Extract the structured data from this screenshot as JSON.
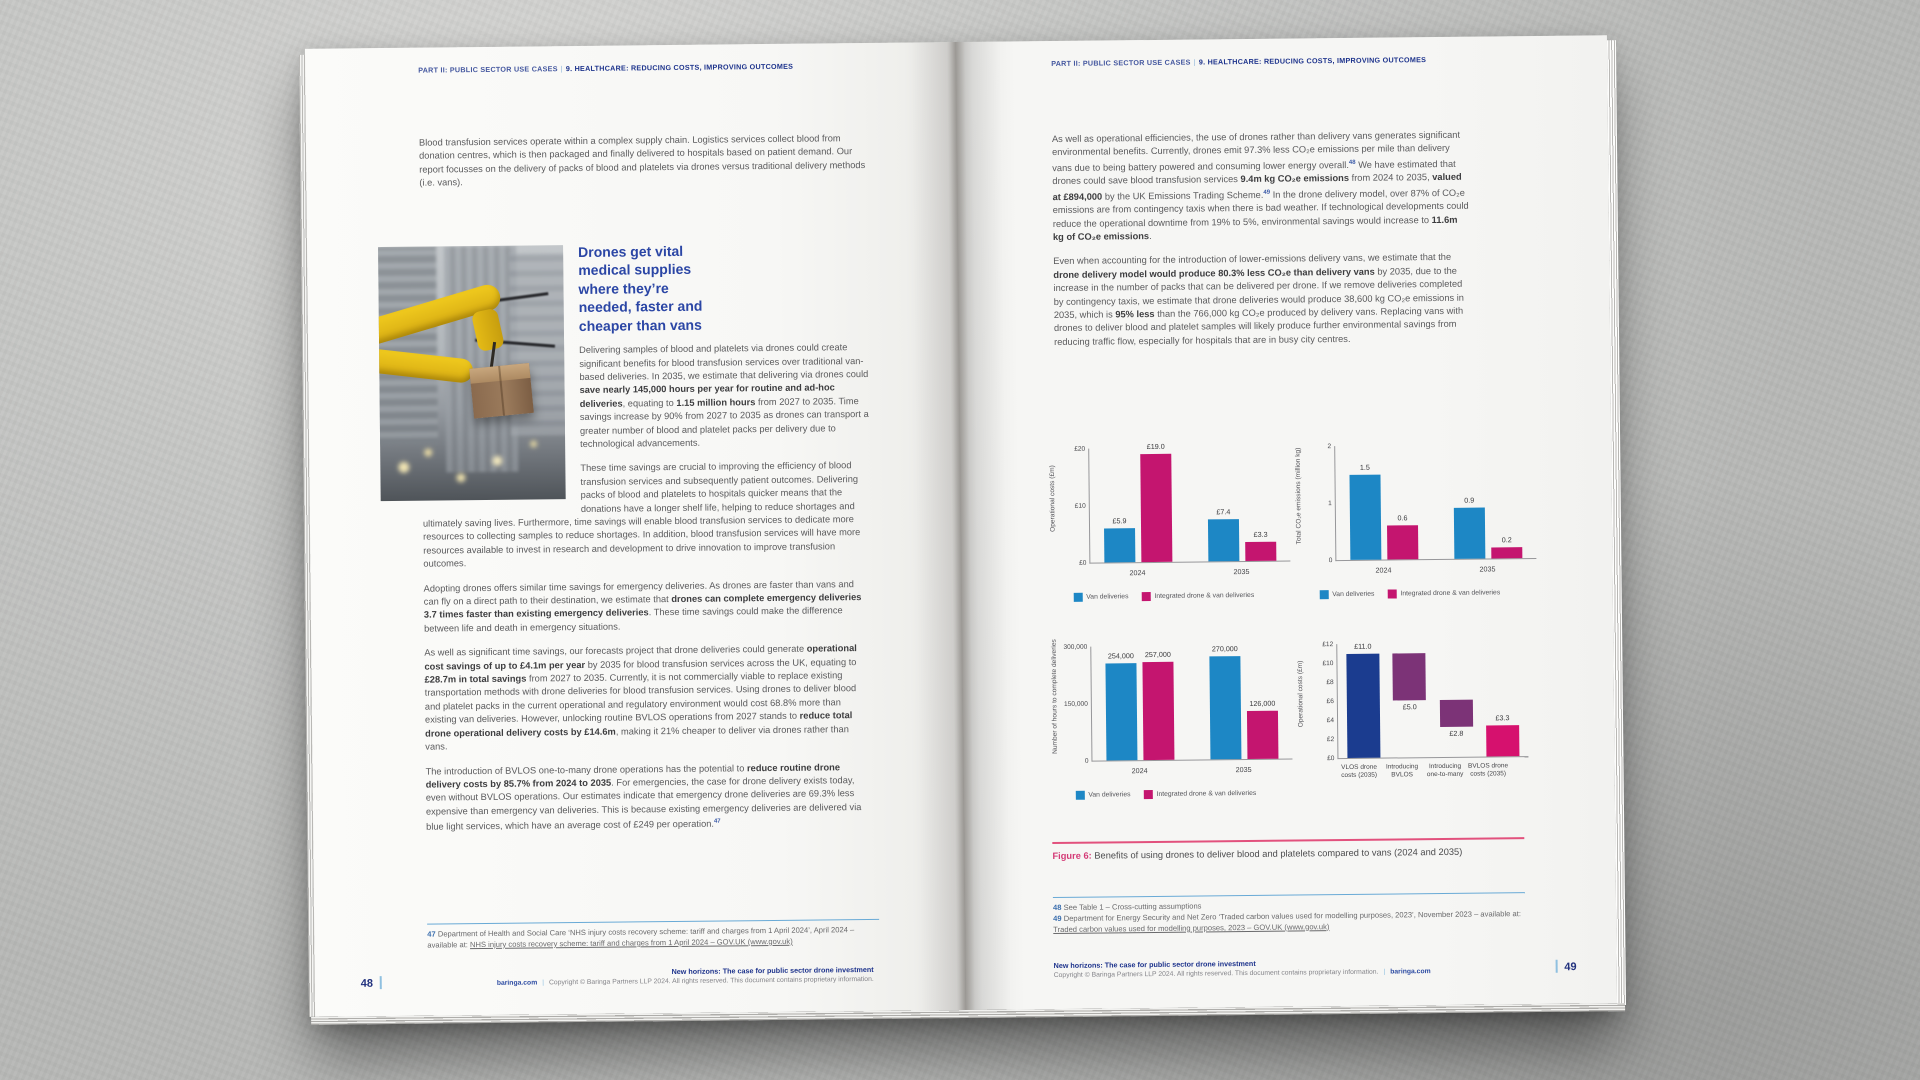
{
  "header": {
    "part": "PART II: PUBLIC SECTOR USE CASES",
    "sep": "|",
    "section": "9. HEALTHCARE: REDUCING COSTS, IMPROVING OUTCOMES"
  },
  "left_page": {
    "intro": "Blood transfusion services operate within a complex supply chain. Logistics services collect blood from donation centres, which is then packaged and finally delivered to hospitals based on patient demand. Our report focusses on the delivery of packs of blood and platelets via drones versus traditional delivery methods (i.e. vans).",
    "heading": "Drones get vital medical supplies where they’re needed, faster and cheaper than vans",
    "para_beside_photo": [
      {
        "t": "Delivering samples of blood and platelets via drones could create significant benefits for blood transfusion services over traditional van-based deliveries. In 2035, we estimate that delivering via drones could "
      },
      {
        "t": "save nearly 145,000 hours per year for routine and ad-hoc deliveries",
        "b": true
      },
      {
        "t": ", equating to "
      },
      {
        "t": "1.15 million hours",
        "b": true
      },
      {
        "t": " from 2027 to 2035. Time savings increase by 90% from 2027 to 2035 as drones can transport a greater number of blood and platelet packs per delivery due to technological advancements."
      }
    ],
    "para_wrap": [
      {
        "t": "These time savings are crucial to improving the efficiency of blood transfusion services and subsequently patient outcomes. Delivering packs of blood and platelets to hospitals quicker means that the donations have a longer shelf life, helping to reduce shortages and ultimately saving lives. Furthermore, time savings will enable blood transfusion services to dedicate more resources to collecting samples to reduce shortages. In addition, blood transfusion services will have more resources available to invest in research and development to drive innovation to improve transfusion outcomes."
      }
    ],
    "para4": [
      {
        "t": "Adopting drones offers similar time savings for emergency deliveries. As drones are faster than vans and can fly on a direct path to their destination, we estimate that "
      },
      {
        "t": "drones can complete emergency deliveries 3.7 times faster than existing emergency deliveries",
        "b": true
      },
      {
        "t": ". These time savings could make the difference between life and death in emergency situations."
      }
    ],
    "para5": [
      {
        "t": "As well as significant time savings, our forecasts project that drone deliveries could generate "
      },
      {
        "t": "operational cost savings of up to £4.1m per year",
        "b": true
      },
      {
        "t": " by 2035 for blood transfusion services across the UK, equating to "
      },
      {
        "t": "£28.7m in total savings",
        "b": true
      },
      {
        "t": " from 2027 to 2035. Currently, it is not commercially viable to replace existing transportation methods with drone deliveries for blood transfusion services. Using drones to deliver blood and platelet packs in the current operational and regulatory environment would cost 68.8% more than existing van deliveries. However, unlocking routine BVLOS operations from 2027 stands to "
      },
      {
        "t": "reduce total drone operational delivery costs by £14.6m",
        "b": true
      },
      {
        "t": ", making it 21% cheaper to deliver via drones rather than vans."
      }
    ],
    "para6": [
      {
        "t": "The introduction of BVLOS one-to-many drone operations has the potential to "
      },
      {
        "t": "reduce routine drone delivery costs by 85.7% from 2024 to 2035",
        "b": true
      },
      {
        "t": ". For emergencies, the case for drone delivery exists today, even without BVLOS operations. Our estimates indicate that emergency drone deliveries are 69.3% less expensive than emergency van deliveries. This is because existing emergency deliveries are delivered via blue light services, which have an average cost of £249 per operation."
      },
      {
        "t": "47",
        "sup": true
      }
    ],
    "footnote47": [
      {
        "t": "47",
        "b": true
      },
      {
        "t": " Department of Health and Social Care ‘NHS injury costs recovery scheme: tariff and charges from 1 April 2024’, April 2024 – available at: "
      },
      {
        "t": "NHS injury costs recovery scheme: tariff and charges from 1 April 2024 – GOV.UK (www.gov.uk)",
        "u": true
      }
    ],
    "page_number": "48",
    "footer_title": "New horizons: The case for public sector drone investment",
    "footer_site": "baringa.com",
    "footer_copyright": "Copyright © Baringa Partners LLP 2024. All rights reserved. This document contains proprietary information."
  },
  "right_page": {
    "para1": [
      {
        "t": "As well as operational efficiencies, the use of drones rather than delivery vans generates significant environmental benefits. Currently, drones emit 97.3% less CO₂e emissions per mile than delivery vans due to being battery powered and consuming lower energy overall."
      },
      {
        "t": "48",
        "sup": true
      },
      {
        "t": " We have estimated that drones could save blood transfusion services "
      },
      {
        "t": "9.4m kg CO₂e emissions",
        "b": true
      },
      {
        "t": " from 2024 to 2035, "
      },
      {
        "t": "valued at £894,000",
        "b": true
      },
      {
        "t": " by the UK Emissions Trading Scheme."
      },
      {
        "t": "49",
        "sup": true
      },
      {
        "t": " In the drone delivery model, over 87% of CO₂e emissions are from contingency taxis when there is bad weather. If technological developments could reduce the operational downtime from 19% to 5%, environmental savings would increase to "
      },
      {
        "t": "11.6m kg of CO₂e emissions",
        "b": true
      },
      {
        "t": "."
      }
    ],
    "para2": [
      {
        "t": "Even when accounting for the introduction of lower-emissions delivery vans, we estimate that the "
      },
      {
        "t": "drone delivery model would produce 80.3% less CO₂e than delivery vans",
        "b": true
      },
      {
        "t": " by 2035, due to the increase in the number of packs that can be delivered per drone. If we remove deliveries completed by contingency taxis, we estimate that drone deliveries would produce 38,600 kg CO₂e emissions in 2035, which is "
      },
      {
        "t": "95% less",
        "b": true
      },
      {
        "t": " than the 766,000 kg CO₂e produced by delivery vans. Replacing vans with drones to deliver blood and platelet samples will likely produce further environmental savings from reducing traffic flow, especially for hospitals that are in busy city centres."
      }
    ],
    "figure_label": "Figure 6:",
    "figure_text": " Benefits of using drones to deliver blood and platelets compared to vans (2024 and 2035)",
    "footnote48": [
      {
        "t": "48",
        "b": true
      },
      {
        "t": " See Table 1 – Cross-cutting assumptions"
      }
    ],
    "footnote49": [
      {
        "t": "49",
        "b": true
      },
      {
        "t": " Department for Energy Security and Net Zero ‘Traded carbon values used for modelling purposes, 2023’, November 2023 – available at: "
      },
      {
        "t": "Traded carbon values used for modelling purposes, 2023 – GOV.UK (www.gov.uk)",
        "u": true
      }
    ],
    "page_number": "49",
    "footer_title": "New horizons: The case for public sector drone investment",
    "footer_site": "baringa.com",
    "footer_copyright": "Copyright © Baringa Partners LLP 2024. All rights reserved. This document contains proprietary information."
  },
  "chart_data": [
    {
      "type": "bar",
      "ylabel": "Operational costs (£m)",
      "categories": [
        "2024",
        "2035"
      ],
      "series": [
        {
          "name": "Van deliveries",
          "color": "#1d87c5",
          "values": [
            5.9,
            7.4
          ],
          "value_labels": [
            "£5.9",
            "£7.4"
          ]
        },
        {
          "name": "Integrated drone & van deliveries",
          "color": "#c4156f",
          "values": [
            19.0,
            3.3
          ],
          "value_labels": [
            "£19.0",
            "£3.3"
          ]
        }
      ],
      "ylim": [
        0,
        20
      ],
      "yticks": [
        {
          "v": 0,
          "label": "£0"
        },
        {
          "v": 10,
          "label": "£10"
        },
        {
          "v": 20,
          "label": "£20"
        }
      ],
      "legend": [
        "Van deliveries",
        "Integrated drone & van deliveries"
      ],
      "grid": false,
      "legend_position": "bottom"
    },
    {
      "type": "bar",
      "ylabel": "Total CO₂e emissions (million kg)",
      "categories": [
        "2024",
        "2035"
      ],
      "series": [
        {
          "name": "Van deliveries",
          "color": "#1d87c5",
          "values": [
            1.5,
            0.9
          ],
          "value_labels": [
            "1.5",
            "0.9"
          ]
        },
        {
          "name": "Integrated drone & van deliveries",
          "color": "#c4156f",
          "values": [
            0.6,
            0.2
          ],
          "value_labels": [
            "0.6",
            "0.2"
          ]
        }
      ],
      "ylim": [
        0,
        2
      ],
      "yticks": [
        {
          "v": 0,
          "label": "0"
        },
        {
          "v": 1,
          "label": "1"
        },
        {
          "v": 2,
          "label": "2"
        }
      ],
      "legend": [
        "Van deliveries",
        "Integrated drone & van deliveries"
      ],
      "grid": false,
      "legend_position": "bottom"
    },
    {
      "type": "bar",
      "ylabel": "Number of hours to complete deliveries",
      "categories": [
        "2024",
        "2035"
      ],
      "series": [
        {
          "name": "Van deliveries",
          "color": "#1d87c5",
          "values": [
            254000,
            270000
          ],
          "value_labels": [
            "254,000",
            "270,000"
          ]
        },
        {
          "name": "Integrated drone & van deliveries",
          "color": "#c4156f",
          "values": [
            257000,
            126000
          ],
          "value_labels": [
            "257,000",
            "126,000"
          ]
        }
      ],
      "ylim": [
        0,
        300000
      ],
      "yticks": [
        {
          "v": 0,
          "label": "0"
        },
        {
          "v": 150000,
          "label": "150,000"
        },
        {
          "v": 300000,
          "label": "300,000"
        }
      ],
      "legend": [
        "Van deliveries",
        "Integrated drone & van deliveries"
      ],
      "grid": false,
      "legend_position": "bottom"
    },
    {
      "type": "waterfall",
      "ylabel": "Operational costs (£m)",
      "ylim": [
        0,
        12
      ],
      "yticks": [
        {
          "v": 0,
          "label": "£0"
        },
        {
          "v": 2,
          "label": "£2"
        },
        {
          "v": 4,
          "label": "£4"
        },
        {
          "v": 6,
          "label": "£6"
        },
        {
          "v": 8,
          "label": "£8"
        },
        {
          "v": 10,
          "label": "£10"
        },
        {
          "v": 12,
          "label": "£12"
        }
      ],
      "bars": [
        {
          "label": "VLOS drone costs (2035)",
          "from": 0,
          "to": 11.0,
          "value_label": "£11.0",
          "label_pos": "top",
          "color": "#1b3c8f"
        },
        {
          "label": "Introducing BVLOS",
          "from": 6.0,
          "to": 11.0,
          "value_label": "£5.0",
          "label_pos": "bottom",
          "color": "#7c3377"
        },
        {
          "label": "Introducing one-to-many",
          "from": 3.2,
          "to": 6.0,
          "value_label": "£2.8",
          "label_pos": "bottom",
          "color": "#7c3377"
        },
        {
          "label": "BVLOS drone costs (2035)",
          "from": 0,
          "to": 3.3,
          "value_label": "£3.3",
          "label_pos": "top",
          "color": "#d6116e"
        }
      ],
      "grid": false
    }
  ]
}
